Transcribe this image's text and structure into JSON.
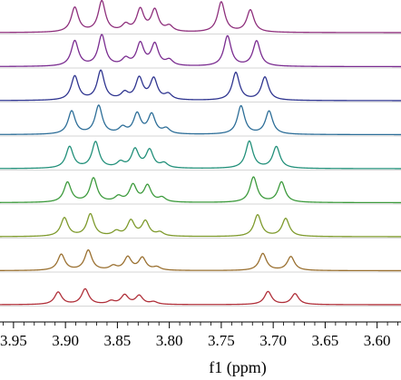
{
  "chart_data": {
    "type": "line",
    "xlabel": "f1 (ppm)",
    "x_reversed": true,
    "xlim": [
      3.963,
      3.577
    ],
    "x_ticks": [
      3.95,
      3.9,
      3.85,
      3.8,
      3.75,
      3.7,
      3.65,
      3.6
    ],
    "x_tick_labels": [
      "3.95",
      "3.90",
      "3.85",
      "3.80",
      "3.75",
      "3.70",
      "3.65",
      "3.60"
    ],
    "grid": false,
    "legend": "none",
    "series": [
      {
        "color": "#8e2f7c",
        "peaks": [
          [
            3.891,
            0.8
          ],
          [
            3.865,
            1.0
          ],
          [
            3.842,
            0.22
          ],
          [
            3.828,
            0.72
          ],
          [
            3.814,
            0.7
          ],
          [
            3.8,
            0.18
          ],
          [
            3.75,
            0.98
          ],
          [
            3.722,
            0.72
          ]
        ]
      },
      {
        "color": "#7a2c90",
        "peaks": [
          [
            3.891,
            0.82
          ],
          [
            3.865,
            1.0
          ],
          [
            3.842,
            0.22
          ],
          [
            3.828,
            0.72
          ],
          [
            3.814,
            0.7
          ],
          [
            3.8,
            0.18
          ],
          [
            3.744,
            0.98
          ],
          [
            3.716,
            0.82
          ]
        ]
      },
      {
        "color": "#2f3590",
        "peaks": [
          [
            3.891,
            0.78
          ],
          [
            3.866,
            0.95
          ],
          [
            3.843,
            0.22
          ],
          [
            3.829,
            0.7
          ],
          [
            3.815,
            0.68
          ],
          [
            3.801,
            0.18
          ],
          [
            3.736,
            0.9
          ],
          [
            3.708,
            0.75
          ]
        ]
      },
      {
        "color": "#2d6e98",
        "peaks": [
          [
            3.894,
            0.75
          ],
          [
            3.868,
            0.92
          ],
          [
            3.845,
            0.2
          ],
          [
            3.831,
            0.65
          ],
          [
            3.817,
            0.63
          ],
          [
            3.803,
            0.17
          ],
          [
            3.731,
            0.92
          ],
          [
            3.704,
            0.75
          ]
        ]
      },
      {
        "color": "#22907a",
        "peaks": [
          [
            3.896,
            0.7
          ],
          [
            3.871,
            0.85
          ],
          [
            3.847,
            0.18
          ],
          [
            3.833,
            0.6
          ],
          [
            3.819,
            0.58
          ],
          [
            3.805,
            0.15
          ],
          [
            3.723,
            0.88
          ],
          [
            3.697,
            0.7
          ]
        ]
      },
      {
        "color": "#3c9a3c",
        "peaks": [
          [
            3.898,
            0.65
          ],
          [
            3.873,
            0.78
          ],
          [
            3.849,
            0.17
          ],
          [
            3.835,
            0.55
          ],
          [
            3.821,
            0.53
          ],
          [
            3.807,
            0.14
          ],
          [
            3.719,
            0.82
          ],
          [
            3.692,
            0.66
          ]
        ]
      },
      {
        "color": "#7e9a2c",
        "peaks": [
          [
            3.901,
            0.6
          ],
          [
            3.876,
            0.72
          ],
          [
            3.851,
            0.15
          ],
          [
            3.837,
            0.5
          ],
          [
            3.823,
            0.48
          ],
          [
            3.809,
            0.12
          ],
          [
            3.715,
            0.7
          ],
          [
            3.688,
            0.58
          ]
        ]
      },
      {
        "color": "#9a7030",
        "peaks": [
          [
            3.904,
            0.52
          ],
          [
            3.878,
            0.65
          ],
          [
            3.854,
            0.13
          ],
          [
            3.84,
            0.42
          ],
          [
            3.826,
            0.4
          ],
          [
            3.812,
            0.1
          ],
          [
            3.71,
            0.55
          ],
          [
            3.683,
            0.45
          ]
        ]
      },
      {
        "color": "#b0303a",
        "peaks": [
          [
            3.907,
            0.4
          ],
          [
            3.881,
            0.5
          ],
          [
            3.856,
            0.1
          ],
          [
            3.843,
            0.3
          ],
          [
            3.829,
            0.28
          ],
          [
            3.815,
            0.08
          ],
          [
            3.705,
            0.42
          ],
          [
            3.679,
            0.35
          ]
        ]
      }
    ]
  }
}
